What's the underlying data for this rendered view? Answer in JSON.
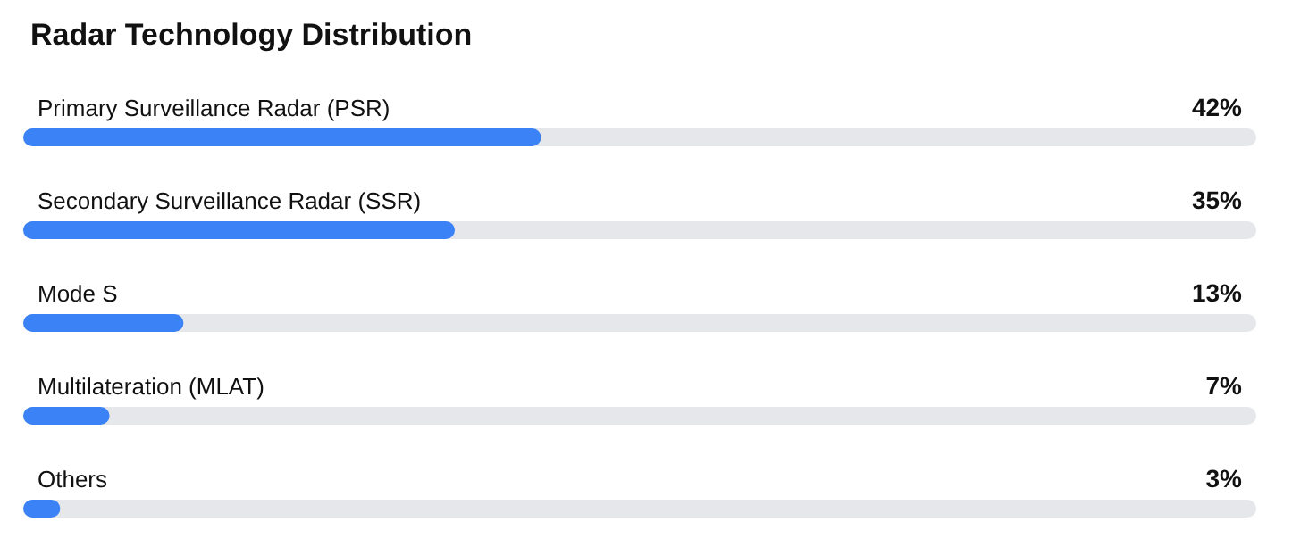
{
  "chart_data": {
    "type": "bar",
    "title": "Radar Technology Distribution",
    "orientation": "horizontal",
    "categories": [
      "Primary Surveillance Radar (PSR)",
      "Secondary Surveillance Radar (SSR)",
      "Mode S",
      "Multilateration (MLAT)",
      "Others"
    ],
    "values": [
      42,
      35,
      13,
      7,
      3
    ],
    "value_labels": [
      "42%",
      "35%",
      "13%",
      "7%",
      "3%"
    ],
    "color": "#3b82f6",
    "xlim": [
      0,
      100
    ],
    "tick_labels": "y",
    "grid": false
  }
}
